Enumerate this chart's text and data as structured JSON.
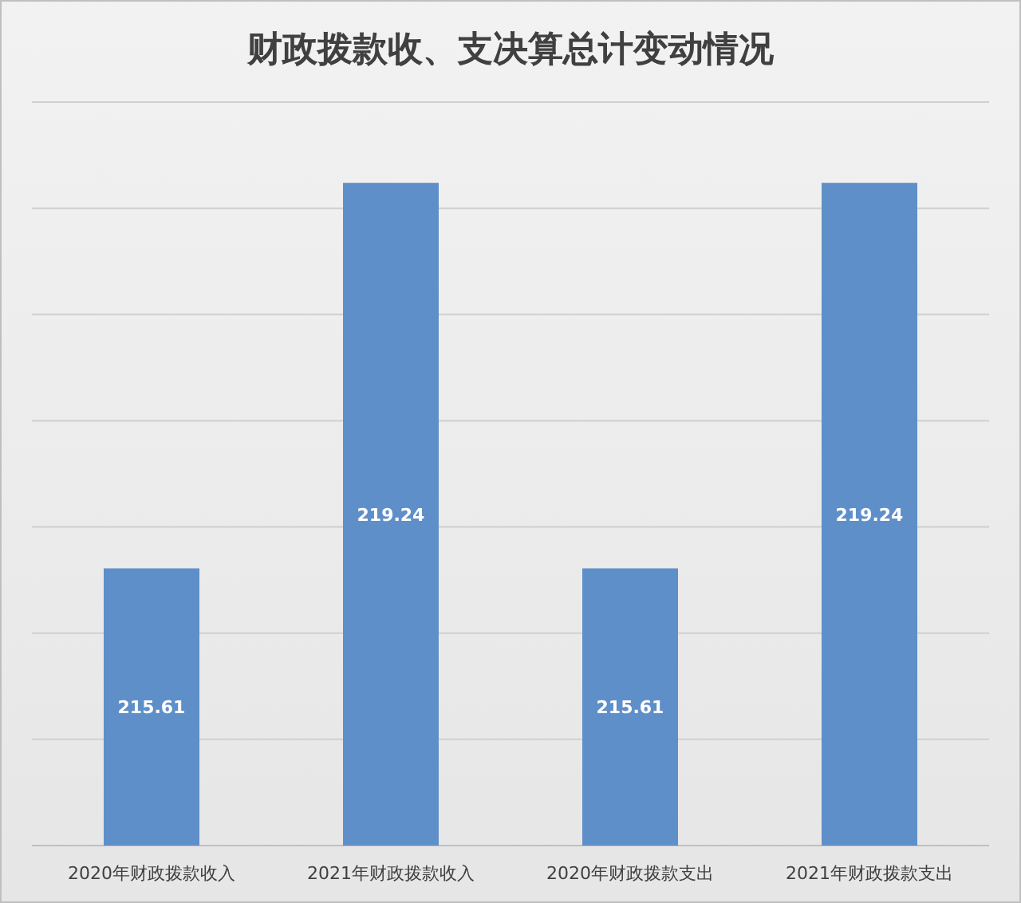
{
  "chart_data": {
    "type": "bar",
    "title": "财政拨款收、支决算总计变动情况",
    "categories": [
      "2020年财政拨款收入",
      "2021年财政拨款收入",
      "2020年财政拨款支出",
      "2021年财政拨款支出"
    ],
    "values": [
      215.61,
      219.24,
      215.61,
      219.24
    ],
    "color": "#5f8fc9",
    "ylim": [
      213,
      220
    ],
    "yticks": [
      213,
      214,
      215,
      216,
      217,
      218,
      219,
      220
    ],
    "grid": "y",
    "tick_labels": "x",
    "data_labels": true
  }
}
